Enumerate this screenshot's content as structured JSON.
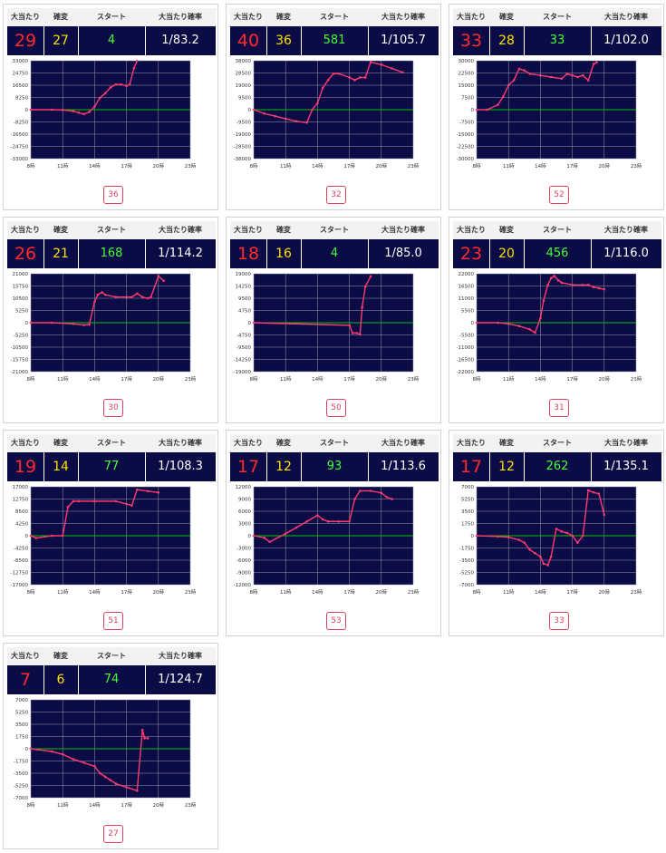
{
  "header_labels": {
    "big": "大当たり",
    "kakuhen": "確変",
    "start": "スタート",
    "prob": "大当たり確率"
  },
  "colors": {
    "panel_bg": "#0b0b45",
    "big_hits": "#ff2a2a",
    "kakuhen": "#ffe000",
    "start": "#44ff33",
    "prob": "#ffffff",
    "line": "#ff3a6e",
    "zero_line": "#00c000",
    "grid": "#9a9ab0"
  },
  "machines": [
    {
      "number": "36",
      "big_hits": "29",
      "kakuhen": "27",
      "start": "4",
      "prob": "1/83.2"
    },
    {
      "number": "32",
      "big_hits": "40",
      "kakuhen": "36",
      "start": "581",
      "prob": "1/105.7"
    },
    {
      "number": "52",
      "big_hits": "33",
      "kakuhen": "28",
      "start": "33",
      "prob": "1/102.0"
    },
    {
      "number": "30",
      "big_hits": "26",
      "kakuhen": "21",
      "start": "168",
      "prob": "1/114.2"
    },
    {
      "number": "50",
      "big_hits": "18",
      "kakuhen": "16",
      "start": "4",
      "prob": "1/85.0"
    },
    {
      "number": "31",
      "big_hits": "23",
      "kakuhen": "20",
      "start": "456",
      "prob": "1/116.0"
    },
    {
      "number": "51",
      "big_hits": "19",
      "kakuhen": "14",
      "start": "77",
      "prob": "1/108.3"
    },
    {
      "number": "53",
      "big_hits": "17",
      "kakuhen": "12",
      "start": "93",
      "prob": "1/113.6"
    },
    {
      "number": "33",
      "big_hits": "17",
      "kakuhen": "12",
      "start": "262",
      "prob": "1/135.1"
    },
    {
      "number": "27",
      "big_hits": "7",
      "kakuhen": "6",
      "start": "74",
      "prob": "1/124.7"
    }
  ],
  "chart_data": [
    {
      "type": "line",
      "x_ticks": [
        "8時",
        "11時",
        "14時",
        "17時",
        "20時",
        "23時"
      ],
      "xlim": [
        8,
        23
      ],
      "ylim": [
        -33000,
        33000
      ],
      "y_ticks": [
        "33000",
        "24750",
        "16500",
        "8250",
        "0",
        "-8250",
        "-16500",
        "-24750",
        "-33000"
      ],
      "x": [
        8,
        10,
        11,
        12,
        12.5,
        13,
        13.5,
        14,
        14.5,
        15,
        15.5,
        16,
        16.5,
        17,
        17.3,
        17.7,
        18
      ],
      "values": [
        0,
        0,
        -200,
        -1000,
        -2000,
        -3000,
        -1500,
        2000,
        8000,
        11000,
        15000,
        17000,
        17000,
        16000,
        17000,
        28000,
        33000
      ]
    },
    {
      "type": "line",
      "x_ticks": [
        "8時",
        "11時",
        "14時",
        "17時",
        "20時",
        "23時"
      ],
      "xlim": [
        8,
        23
      ],
      "ylim": [
        -38000,
        38000
      ],
      "y_ticks": [
        "38000",
        "28500",
        "19000",
        "9500",
        "0",
        "-9500",
        "-19000",
        "-28500",
        "-38000"
      ],
      "x": [
        8,
        9,
        10,
        11,
        12,
        13,
        13.5,
        14,
        14.5,
        15,
        15.5,
        16,
        17,
        17.5,
        18,
        18.5,
        19,
        20,
        21,
        22
      ],
      "values": [
        0,
        -3000,
        -5000,
        -7000,
        -9000,
        -10000,
        0,
        5000,
        17000,
        23000,
        28000,
        28000,
        25000,
        23000,
        25000,
        25000,
        37000,
        35000,
        32000,
        29000
      ]
    },
    {
      "type": "line",
      "x_ticks": [
        "8時",
        "11時",
        "14時",
        "17時",
        "20時",
        "23時"
      ],
      "xlim": [
        8,
        23
      ],
      "ylim": [
        -30000,
        30000
      ],
      "y_ticks": [
        "30000",
        "22500",
        "15000",
        "7500",
        "0",
        "-7500",
        "-15000",
        "-22500",
        "-30000"
      ],
      "x": [
        8,
        9,
        10,
        10.5,
        11,
        11.5,
        12,
        12.5,
        13,
        14,
        15,
        16,
        16.5,
        17,
        17.5,
        18,
        18.5,
        19,
        19.3
      ],
      "values": [
        0,
        0,
        3000,
        8000,
        15000,
        18000,
        25000,
        24000,
        22000,
        21000,
        20000,
        19000,
        22000,
        21000,
        20000,
        21000,
        18000,
        28000,
        29000
      ]
    },
    {
      "type": "line",
      "x_ticks": [
        "8時",
        "11時",
        "14時",
        "17時",
        "20時",
        "23時"
      ],
      "xlim": [
        8,
        23
      ],
      "ylim": [
        -21000,
        21000
      ],
      "y_ticks": [
        "21000",
        "15750",
        "10500",
        "5250",
        "0",
        "-5250",
        "-10500",
        "-15750",
        "-21000"
      ],
      "x": [
        8,
        10,
        12,
        13,
        13.5,
        14,
        14.3,
        14.7,
        15,
        16,
        17,
        17.5,
        18,
        18.5,
        19,
        19.3,
        20,
        20.5
      ],
      "values": [
        0,
        0,
        -500,
        -1000,
        -800,
        9000,
        12000,
        13000,
        12000,
        11000,
        11000,
        11000,
        12500,
        11000,
        10500,
        11000,
        20000,
        18000
      ]
    },
    {
      "type": "line",
      "x_ticks": [
        "8時",
        "11時",
        "14時",
        "17時",
        "20時",
        "23時"
      ],
      "xlim": [
        8,
        23
      ],
      "ylim": [
        -19000,
        19000
      ],
      "y_ticks": [
        "19000",
        "14250",
        "9500",
        "4750",
        "0",
        "-4750",
        "-9500",
        "-14250",
        "-19000"
      ],
      "x": [
        8,
        17,
        17.3,
        17.7,
        18,
        18.2,
        18.5,
        19
      ],
      "values": [
        0,
        -1000,
        -4000,
        -4000,
        -4500,
        6000,
        14000,
        18000
      ]
    },
    {
      "type": "line",
      "x_ticks": [
        "8時",
        "11時",
        "14時",
        "17時",
        "20時",
        "23時"
      ],
      "xlim": [
        8,
        23
      ],
      "ylim": [
        -22000,
        22000
      ],
      "y_ticks": [
        "22000",
        "16500",
        "11000",
        "5500",
        "0",
        "-5500",
        "-11000",
        "-16500",
        "-22000"
      ],
      "x": [
        8,
        10,
        11,
        12,
        13,
        13.5,
        14,
        14.3,
        14.7,
        15,
        15.3,
        15.7,
        16,
        17,
        18,
        18.5,
        19,
        19.5,
        20
      ],
      "values": [
        0,
        0,
        -500,
        -1500,
        -3000,
        -4500,
        2000,
        10000,
        17000,
        20000,
        21000,
        19000,
        18000,
        17000,
        17000,
        17000,
        16000,
        15500,
        15000
      ]
    },
    {
      "type": "line",
      "x_ticks": [
        "8時",
        "11時",
        "14時",
        "17時",
        "20時",
        "23時"
      ],
      "xlim": [
        8,
        23
      ],
      "ylim": [
        -17000,
        17000
      ],
      "y_ticks": [
        "17000",
        "12750",
        "8500",
        "4250",
        "0",
        "-4250",
        "-8500",
        "-12750",
        "-17000"
      ],
      "x": [
        8,
        8.5,
        10,
        11,
        11.5,
        12,
        12.5,
        14,
        16,
        17,
        17.5,
        18,
        19,
        20
      ],
      "values": [
        0,
        -800,
        0,
        0,
        10000,
        12000,
        12000,
        12000,
        12000,
        11000,
        10500,
        16000,
        15500,
        15000
      ]
    },
    {
      "type": "line",
      "x_ticks": [
        "8時",
        "11時",
        "14時",
        "17時",
        "20時",
        "23時"
      ],
      "xlim": [
        8,
        23
      ],
      "ylim": [
        -12000,
        12000
      ],
      "y_ticks": [
        "12000",
        "9000",
        "6000",
        "3000",
        "0",
        "-3000",
        "-6000",
        "-9000",
        "-12000"
      ],
      "x": [
        8,
        9,
        9.5,
        11,
        12,
        13,
        14,
        14.5,
        15,
        16,
        17,
        17.5,
        18,
        19,
        20,
        20.5,
        21
      ],
      "values": [
        0,
        -500,
        -1500,
        500,
        2000,
        3500,
        5000,
        4000,
        3500,
        3500,
        3500,
        9000,
        11000,
        11000,
        10500,
        9500,
        9000
      ]
    },
    {
      "type": "line",
      "x_ticks": [
        "8時",
        "11時",
        "14時",
        "17時",
        "20時",
        "23時"
      ],
      "xlim": [
        8,
        23
      ],
      "ylim": [
        -7000,
        7000
      ],
      "y_ticks": [
        "7000",
        "5250",
        "3500",
        "1750",
        "0",
        "-1750",
        "-3500",
        "-5250",
        "-7000"
      ],
      "x": [
        8,
        10,
        11,
        12,
        12.5,
        13,
        13.5,
        14,
        14.3,
        14.7,
        15,
        15.5,
        16,
        16.5,
        17,
        17.5,
        18,
        18.5,
        19,
        19.5,
        20
      ],
      "values": [
        0,
        -100,
        -200,
        -600,
        -1000,
        -2000,
        -2500,
        -3000,
        -4000,
        -4200,
        -3000,
        1000,
        600,
        400,
        0,
        -1000,
        0,
        6500,
        6200,
        6000,
        3000
      ]
    },
    {
      "type": "line",
      "x_ticks": [
        "8時",
        "11時",
        "14時",
        "17時",
        "20時",
        "23時"
      ],
      "xlim": [
        8,
        23
      ],
      "ylim": [
        -7000,
        7000
      ],
      "y_ticks": [
        "7000",
        "5250",
        "3500",
        "1750",
        "0",
        "-1750",
        "-3500",
        "-5250",
        "-7000"
      ],
      "x": [
        8,
        10,
        11,
        12,
        13,
        14,
        14.5,
        15,
        15.5,
        16,
        17,
        18,
        18.5,
        18.7,
        19
      ],
      "values": [
        0,
        -400,
        -800,
        -1500,
        -2000,
        -2500,
        -3500,
        -4000,
        -4500,
        -5000,
        -5500,
        -6000,
        2700,
        1500,
        1500
      ]
    }
  ]
}
